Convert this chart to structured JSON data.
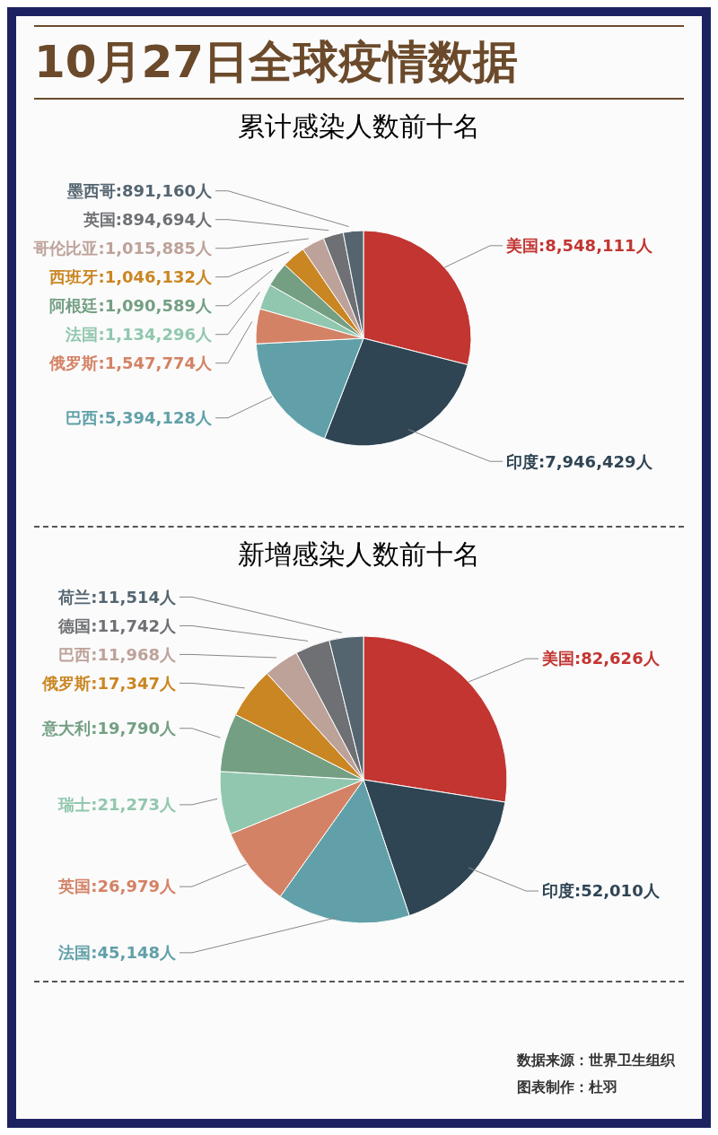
{
  "chart_data": [
    {
      "type": "pie",
      "title": "10月27日全球疫情数据",
      "subtitle": "累计感染人数前十名",
      "legend": false,
      "categories": [
        "美国",
        "印度",
        "巴西",
        "俄罗斯",
        "法国",
        "阿根廷",
        "西班牙",
        "哥伦比亚",
        "英国",
        "墨西哥"
      ],
      "values": [
        8548111,
        7946429,
        5394128,
        1547774,
        1134296,
        1090589,
        1046132,
        1015885,
        894694,
        891160
      ],
      "value_labels": [
        "8,548,111人",
        "7,946,429人",
        "5,394,128人",
        "1,547,774人",
        "1,134,296人",
        "1,090,589人",
        "1,046,132人",
        "1,015,885人",
        "894,694人",
        "891,160人"
      ],
      "colors": [
        "#c23531",
        "#2f4554",
        "#61a0a8",
        "#d48265",
        "#91c7ae",
        "#749f83",
        "#ca8622",
        "#bda29a",
        "#6e7074",
        "#546570"
      ]
    },
    {
      "type": "pie",
      "title": "新增感染人数前十名",
      "legend": false,
      "categories": [
        "美国",
        "印度",
        "法国",
        "英国",
        "瑞士",
        "意大利",
        "俄罗斯",
        "巴西",
        "德国",
        "荷兰"
      ],
      "values": [
        82626,
        52010,
        45148,
        26979,
        21273,
        19790,
        17347,
        11968,
        11742,
        11514
      ],
      "value_labels": [
        "82,626人",
        "52,010人",
        "45,148人",
        "26,979人",
        "21,273人",
        "19,790人",
        "17,347人",
        "11,968人",
        "11,742人",
        "11,514人"
      ],
      "colors": [
        "#c23531",
        "#2f4554",
        "#61a0a8",
        "#d48265",
        "#91c7ae",
        "#749f83",
        "#ca8622",
        "#bda29a",
        "#6e7074",
        "#546570"
      ],
      "annotations": [
        "数据来源：世界卫生组织",
        "图表制作：杜羽"
      ]
    }
  ]
}
